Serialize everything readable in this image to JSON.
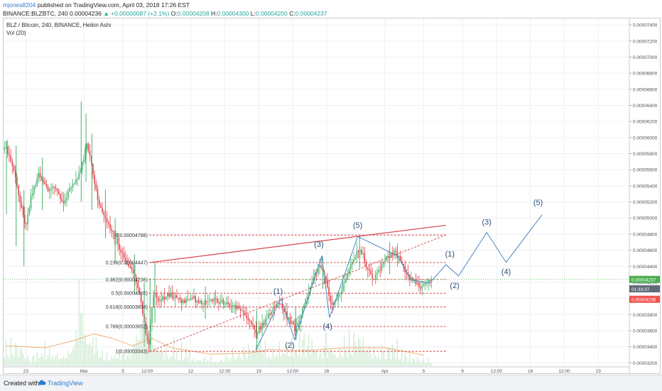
{
  "header": {
    "author": "mjones8204",
    "published": "published on TradingView.com, April 03, 2018 17:26 EST",
    "symbol": "BINANCE:BLZBTC, 240",
    "last": "0.00004236",
    "change": "+0.00000087 (+2.1%)",
    "ohlc": {
      "o_label": "O:",
      "o": "0.00004208",
      "h_label": "H:",
      "h": "0.00004300",
      "l_label": "L:",
      "l": "0.00004200",
      "c_label": "C:",
      "c": "0.00004237"
    }
  },
  "legend": {
    "title": "BLZ / Bitcoin, 240, BINANCE, Heikin Ashi",
    "indicator": "Vol (20)"
  },
  "footer": {
    "created_with": "Created with",
    "brand": "TradingView"
  },
  "colors": {
    "up": "#26a69a",
    "up_candle": "#45b36b",
    "down": "#e2434b",
    "fib": "#d5464b",
    "wave": "#4a88c7",
    "volume": "#cde9cf",
    "vol_ma": "#f0a868",
    "grid": "#eef0f3",
    "price_tag": "#4caf50",
    "countdown_tag": "#616a78",
    "prev_tag": "#ef5350"
  },
  "chart_data": {
    "type": "candlestick",
    "chart_style": "Heikin Ashi",
    "x_axis": {
      "tick_labels": [
        "23",
        "Mar",
        "5",
        "12:00",
        "12",
        "12:00",
        "19",
        "12:00",
        "26",
        "Apr",
        "5",
        "9",
        "12:00",
        "16",
        "12:00",
        "23"
      ],
      "tick_days": [
        -6,
        0,
        4,
        6.5,
        11,
        14.5,
        18,
        21.5,
        25,
        31,
        35,
        39,
        42.5,
        46,
        49.5,
        53
      ]
    },
    "y_axis": {
      "range": [
        3.15e-05,
        7.48e-05
      ],
      "tick_values": [
        3.2e-05,
        3.4e-05,
        3.6e-05,
        3.8e-05,
        4e-05,
        4.2e-05,
        4.4e-05,
        4.6e-05,
        4.8e-05,
        5e-05,
        5.2e-05,
        5.4e-05,
        5.6e-05,
        5.8e-05,
        6e-05,
        6.2e-05,
        6.4e-05,
        6.6e-05,
        6.8e-05,
        7e-05,
        7.2e-05,
        7.4e-05
      ],
      "tick_labels": [
        "0.00003200",
        "0.00003400",
        "0.00003600",
        "0.00003800",
        "0.00004000",
        "0.00004200",
        "0.00004400",
        "0.00004600",
        "0.00004800",
        "0.00005000",
        "0.00005200",
        "0.00005400",
        "0.00005600",
        "0.00005800",
        "0.00006000",
        "0.00006200",
        "0.00006400",
        "0.00006600",
        "0.00006800",
        "0.00007000",
        "0.00007200",
        "0.00007400"
      ]
    },
    "grid": true,
    "price_markers": [
      {
        "label": "0.00004237",
        "value": 4.237e-05,
        "style": "price"
      },
      {
        "label": "01:33:37",
        "value": 4.12e-05,
        "style": "countdown"
      },
      {
        "label": "0.00004236",
        "value": 3.99e-05,
        "style": "prev"
      }
    ],
    "current_price": 4.237e-05,
    "price_path": [
      [
        -8,
        5.85e-05
      ],
      [
        -7.3,
        5.6e-05
      ],
      [
        -6.5,
        5.15e-05
      ],
      [
        -6,
        4.9e-05
      ],
      [
        -5.4,
        5.3e-05
      ],
      [
        -4.6,
        5.55e-05
      ],
      [
        -3.8,
        5.35e-05
      ],
      [
        -3,
        5.4e-05
      ],
      [
        -2.2,
        5.2e-05
      ],
      [
        -1.4,
        5.35e-05
      ],
      [
        -0.7,
        5.5e-05
      ],
      [
        -0.1,
        5.7e-05
      ],
      [
        0.3,
        5.95e-05
      ],
      [
        0.8,
        5.65e-05
      ],
      [
        1.3,
        5.3e-05
      ],
      [
        1.8,
        5.1e-05
      ],
      [
        2.4,
        4.95e-05
      ],
      [
        3,
        4.8e-05
      ],
      [
        3.6,
        4.65e-05
      ],
      [
        4.1,
        4.5e-05
      ],
      [
        4.6,
        4.4e-05
      ],
      [
        5.1,
        4.3e-05
      ],
      [
        5.6,
        4.1e-05
      ],
      [
        6,
        3.85e-05
      ],
      [
        6.4,
        3.55e-05
      ],
      [
        6.7,
        3.45e-05
      ],
      [
        6.9,
        3.8e-05
      ],
      [
        7.2,
        4.05e-05
      ],
      [
        7.8,
        3.98e-05
      ],
      [
        9,
        4.05e-05
      ],
      [
        10,
        3.96e-05
      ],
      [
        11,
        4.02e-05
      ],
      [
        12,
        3.94e-05
      ],
      [
        13,
        4.01e-05
      ],
      [
        14,
        3.96e-05
      ],
      [
        15,
        3.92e-05
      ],
      [
        16,
        3.88e-05
      ],
      [
        16.6,
        3.8e-05
      ],
      [
        17.2,
        3.68e-05
      ],
      [
        17.7,
        3.58e-05
      ],
      [
        18.3,
        3.66e-05
      ],
      [
        19,
        3.78e-05
      ],
      [
        19.6,
        3.88e-05
      ],
      [
        20,
        3.97e-05
      ],
      [
        20.6,
        3.85e-05
      ],
      [
        21.2,
        3.72e-05
      ],
      [
        21.7,
        3.62e-05
      ],
      [
        22.2,
        3.72e-05
      ],
      [
        22.8,
        3.95e-05
      ],
      [
        23.4,
        4.2e-05
      ],
      [
        24,
        4.35e-05
      ],
      [
        24.5,
        4.4e-05
      ],
      [
        24.9,
        4.22e-05
      ],
      [
        25.3,
        4e-05
      ],
      [
        25.7,
        3.92e-05
      ],
      [
        26.1,
        4e-05
      ],
      [
        26.8,
        4.2e-05
      ],
      [
        27.5,
        4.4e-05
      ],
      [
        28.2,
        4.6e-05
      ],
      [
        28.7,
        4.55e-05
      ],
      [
        29.2,
        4.38e-05
      ],
      [
        29.7,
        4.25e-05
      ],
      [
        30.2,
        4.3e-05
      ],
      [
        30.8,
        4.45e-05
      ],
      [
        31.4,
        4.52e-05
      ],
      [
        32,
        4.6e-05
      ],
      [
        32.6,
        4.48e-05
      ],
      [
        33.2,
        4.32e-05
      ],
      [
        33.8,
        4.24e-05
      ],
      [
        34.4,
        4.18e-05
      ],
      [
        34.9,
        4.14e-05
      ],
      [
        35.4,
        4.2e-05
      ],
      [
        35.8,
        4.24e-05
      ]
    ],
    "spikes": [
      {
        "x": -8,
        "high": 5.95e-05,
        "low": 5.05e-05
      },
      {
        "x": -7,
        "high": 5.9e-05,
        "low": 4.65e-05
      },
      {
        "x": -6.2,
        "high": 5.35e-05,
        "low": 4.4e-05
      },
      {
        "x": -4.3,
        "high": 5.75e-05,
        "low": 5.1e-05
      },
      {
        "x": -0.3,
        "high": 6.45e-05,
        "low": 5.2e-05
      },
      {
        "x": 0.2,
        "high": 6.3e-05,
        "low": 5.45e-05
      },
      {
        "x": 0.8,
        "high": 6.05e-05,
        "low": 5.1e-05
      },
      {
        "x": 2.2,
        "high": 5.35e-05,
        "low": 4.75e-05
      },
      {
        "x": 3.2,
        "high": 5e-05,
        "low": 4.45e-05
      },
      {
        "x": 5.2,
        "high": 4.55e-05,
        "low": 4.05e-05
      },
      {
        "x": 6.2,
        "high": 4.2e-05,
        "low": 3.4e-05
      },
      {
        "x": 6.8,
        "high": 4.25e-05,
        "low": 3.34e-05
      },
      {
        "x": 7.3,
        "high": 4.45e-05,
        "low": 3.7e-05
      },
      {
        "x": 12.5,
        "high": 4.15e-05,
        "low": 3.75e-05
      },
      {
        "x": 17.8,
        "high": 3.85e-05,
        "low": 3.36e-05
      },
      {
        "x": 21.8,
        "high": 3.9e-05,
        "low": 3.48e-05
      },
      {
        "x": 24.6,
        "high": 4.52e-05,
        "low": 4.12e-05
      },
      {
        "x": 28.4,
        "high": 4.78e-05,
        "low": 4.38e-05
      },
      {
        "x": 31.5,
        "high": 4.7e-05,
        "low": 4.3e-05
      },
      {
        "x": 32.3,
        "high": 4.68e-05,
        "low": 4.4e-05
      }
    ],
    "volume_profile": [
      [
        -8,
        0.3
      ],
      [
        -6,
        0.15
      ],
      [
        -4,
        0.25
      ],
      [
        -2,
        0.2
      ],
      [
        -0.5,
        0.9
      ],
      [
        0.5,
        0.6
      ],
      [
        2,
        0.25
      ],
      [
        4,
        0.2
      ],
      [
        6,
        0.5
      ],
      [
        6.8,
        0.85
      ],
      [
        8,
        0.3
      ],
      [
        12,
        0.15
      ],
      [
        16,
        0.2
      ],
      [
        18,
        0.45
      ],
      [
        20,
        0.2
      ],
      [
        22,
        0.4
      ],
      [
        24,
        0.35
      ],
      [
        26,
        0.25
      ],
      [
        28,
        0.45
      ],
      [
        30,
        0.3
      ],
      [
        32,
        0.3
      ],
      [
        34,
        0.15
      ],
      [
        35.8,
        0.12
      ]
    ],
    "volume_ma": [
      [
        -8,
        0.22
      ],
      [
        -4,
        0.2
      ],
      [
        -1,
        0.28
      ],
      [
        1,
        0.35
      ],
      [
        3,
        0.3
      ],
      [
        5,
        0.22
      ],
      [
        7,
        0.3
      ],
      [
        9,
        0.2
      ],
      [
        13,
        0.13
      ],
      [
        17,
        0.14
      ],
      [
        19,
        0.18
      ],
      [
        23,
        0.17
      ],
      [
        27,
        0.2
      ],
      [
        31,
        0.2
      ],
      [
        35,
        0.12
      ]
    ],
    "fib_levels": [
      {
        "label": "0(0.00004788)",
        "value": 4.788e-05
      },
      {
        "label": "0.236(0.00004447)",
        "value": 4.447e-05
      },
      {
        "label": "0.382(0.00004236)",
        "value": 4.236e-05
      },
      {
        "label": "0.5(0.00004065)",
        "value": 4.065e-05
      },
      {
        "label": "0.618(0.00003894)",
        "value": 3.894e-05
      },
      {
        "label": "0.786(0.00003652)",
        "value": 3.652e-05
      },
      {
        "label": "1(0.00003343)",
        "value": 3.343e-05
      }
    ],
    "fib_range_days": [
      6.7,
      37.3
    ],
    "trend_line": {
      "from": [
        6.8,
        4.447e-05
      ],
      "to": [
        37.3,
        4.91e-05
      ]
    },
    "dashed_diagonal": {
      "from": [
        6.8,
        3.343e-05
      ],
      "to": [
        37.3,
        4.79e-05
      ]
    },
    "wave_path": [
      [
        17.7,
        3.36e-05
      ],
      [
        20.3,
        4e-05
      ],
      [
        21.7,
        3.49e-05
      ],
      [
        24.5,
        4.53e-05
      ],
      [
        25.3,
        3.76e-05
      ],
      [
        28.2,
        4.77e-05
      ],
      [
        32.3,
        4.53e-05
      ],
      [
        33.7,
        4.23e-05
      ],
      [
        35.6,
        4.19e-05
      ],
      [
        37.3,
        4.42e-05
      ],
      [
        38.6,
        4.28e-05
      ],
      [
        41.5,
        4.82e-05
      ],
      [
        43.5,
        4.45e-05
      ],
      [
        47.2,
        5.04e-05
      ]
    ],
    "wave_labels": [
      {
        "text": "(1)",
        "at": [
          20,
          4.06e-05
        ]
      },
      {
        "text": "(2)",
        "at": [
          21.2,
          3.39e-05
        ]
      },
      {
        "text": "(3)",
        "at": [
          24.2,
          4.64e-05
        ]
      },
      {
        "text": "(4)",
        "at": [
          25.1,
          3.62e-05
        ]
      },
      {
        "text": "(5)",
        "at": [
          28.2,
          4.88e-05
        ]
      },
      {
        "text": "(1)",
        "at": [
          37.7,
          4.52e-05
        ]
      },
      {
        "text": "(2)",
        "at": [
          38.2,
          4.13e-05
        ]
      },
      {
        "text": "(3)",
        "at": [
          41.5,
          4.92e-05
        ]
      },
      {
        "text": "(4)",
        "at": [
          43.5,
          4.3e-05
        ]
      },
      {
        "text": "(5)",
        "at": [
          46.8,
          5.16e-05
        ]
      }
    ]
  }
}
